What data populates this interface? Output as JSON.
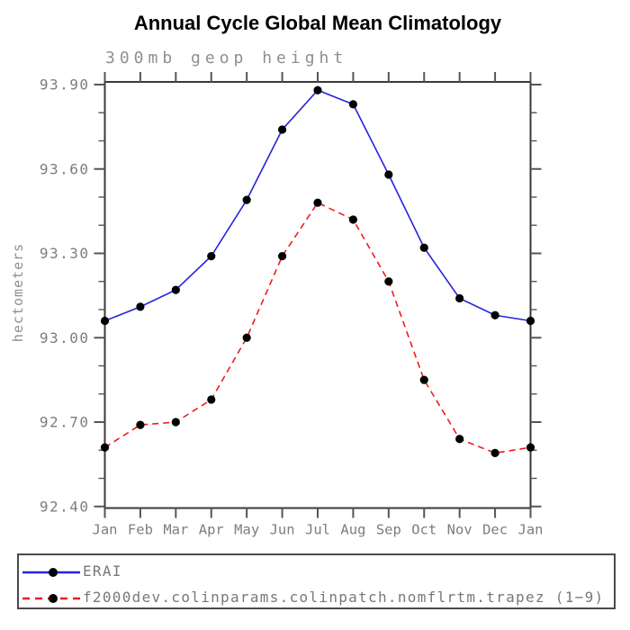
{
  "chart_data": {
    "type": "line",
    "title": "Annual Cycle Global Mean Climatology",
    "subtitle": "300mb geop height",
    "ylabel": "hectometers",
    "x_categories": [
      "Jan",
      "Feb",
      "Mar",
      "Apr",
      "May",
      "Jun",
      "Jul",
      "Aug",
      "Sep",
      "Oct",
      "Nov",
      "Dec",
      "Jan"
    ],
    "ylim": [
      92.4,
      93.9
    ],
    "ytick_major_step": 0.3,
    "ytick_minor_step": 0.1,
    "ytick_labels": [
      "93.90",
      "93.60",
      "93.30",
      "93.00",
      "92.70",
      "92.40"
    ],
    "grid": false,
    "legend_position": "bottom",
    "series": [
      {
        "name": "ERAI",
        "style": "solid",
        "color": "#2424dd",
        "marker": "circle",
        "marker_color": "#000000",
        "values": [
          93.06,
          93.11,
          93.17,
          93.29,
          93.49,
          93.74,
          93.88,
          93.83,
          93.58,
          93.32,
          93.14,
          93.08,
          93.06
        ]
      },
      {
        "name": "f2000dev.colinparams.colinpatch.nomflrtm.trapez (1−9)",
        "style": "dashed",
        "color": "#ee1c1c",
        "marker": "circle",
        "marker_color": "#000000",
        "values": [
          92.61,
          92.69,
          92.7,
          92.78,
          93.0,
          93.29,
          93.48,
          93.42,
          93.2,
          92.85,
          92.64,
          92.59,
          92.61
        ]
      }
    ]
  },
  "legend": {
    "entries": [
      {
        "label": "ERAI"
      },
      {
        "label": "f2000dev.colinparams.colinpatch.nomflrtm.trapez (1−9)"
      }
    ]
  },
  "colors": {
    "axis": "#3a3a3a",
    "tick": "#555555",
    "label_text": "#7d7d7d",
    "title_text": "#000000",
    "series1": "#2424dd",
    "series2": "#ee1c1c",
    "marker": "#000000"
  }
}
